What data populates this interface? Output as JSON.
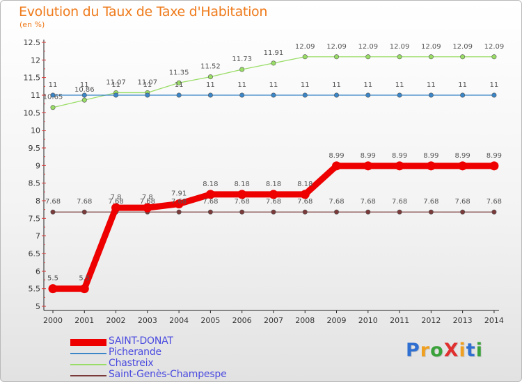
{
  "title": "Evolution du Taux de Taxe d'Habitation",
  "unit": "(en %)",
  "logo": {
    "text": "ProXiti",
    "letters": [
      {
        "ch": "P",
        "color": "#2e6fd1"
      },
      {
        "ch": "r",
        "color": "#f0a020"
      },
      {
        "ch": "o",
        "color": "#3aa23a"
      },
      {
        "ch": "X",
        "color": "#e03030"
      },
      {
        "ch": "i",
        "color": "#f0a020"
      },
      {
        "ch": "t",
        "color": "#2e6fd1"
      },
      {
        "ch": "i",
        "color": "#3aa23a"
      }
    ]
  },
  "chart_data": {
    "type": "line",
    "categories": [
      "2000",
      "2001",
      "2002",
      "2003",
      "2004",
      "2005",
      "2006",
      "2007",
      "2008",
      "2009",
      "2010",
      "2011",
      "2012",
      "2013",
      "2014"
    ],
    "ylim": [
      5,
      12.5
    ],
    "yticks": [
      "5",
      "5.5",
      "6",
      "6.5",
      "7",
      "7.5",
      "8",
      "8.5",
      "9",
      "9.5",
      "10",
      "10.5",
      "11",
      "11.5",
      "12",
      "12.5"
    ],
    "grid": false,
    "legend_position": "bottom-left",
    "series": [
      {
        "name": "SAINT-DONAT",
        "color": "#ee0000",
        "style": "thick",
        "values": [
          5.5,
          5.5,
          7.8,
          7.8,
          7.91,
          8.18,
          8.18,
          8.18,
          8.18,
          8.99,
          8.99,
          8.99,
          8.99,
          8.99,
          8.99
        ],
        "labels": [
          "5.5",
          "5.5",
          "7.8",
          "7.8",
          "7.91",
          "8.18",
          "8.18",
          "8.18",
          "8.18",
          "8.99",
          "8.99",
          "8.99",
          "8.99",
          "8.99",
          "8.99"
        ]
      },
      {
        "name": "Picherande",
        "color": "#3a86c8",
        "style": "thin",
        "values": [
          11,
          11,
          11,
          11,
          11,
          11,
          11,
          11,
          11,
          11,
          11,
          11,
          11,
          11,
          11
        ],
        "labels": [
          "11",
          "11",
          "11",
          "11",
          "11",
          "11",
          "11",
          "11",
          "11",
          "11",
          "11",
          "11",
          "11",
          "11",
          "11"
        ]
      },
      {
        "name": "Chastreix",
        "color": "#99dd66",
        "style": "thin",
        "values": [
          10.65,
          10.86,
          11.07,
          11.07,
          11.35,
          11.52,
          11.73,
          11.91,
          12.09,
          12.09,
          12.09,
          12.09,
          12.09,
          12.09,
          12.09
        ],
        "labels": [
          "10.65",
          "10.86",
          "11.07",
          "11.07",
          "11.35",
          "11.52",
          "11.73",
          "11.91",
          "12.09",
          "12.09",
          "12.09",
          "12.09",
          "12.09",
          "12.09",
          "12.09"
        ]
      },
      {
        "name": "Saint-Genès-Champespe",
        "color": "#7a3a3a",
        "style": "thin",
        "values": [
          7.68,
          7.68,
          7.68,
          7.68,
          7.68,
          7.68,
          7.68,
          7.68,
          7.68,
          7.68,
          7.68,
          7.68,
          7.68,
          7.68,
          7.68
        ],
        "labels": [
          "7.68",
          "7.68",
          "7.68",
          "7.68",
          "7.68",
          "7.68",
          "7.68",
          "7.68",
          "7.68",
          "7.68",
          "7.68",
          "7.68",
          "7.68",
          "7.68",
          "7.68"
        ]
      }
    ]
  }
}
